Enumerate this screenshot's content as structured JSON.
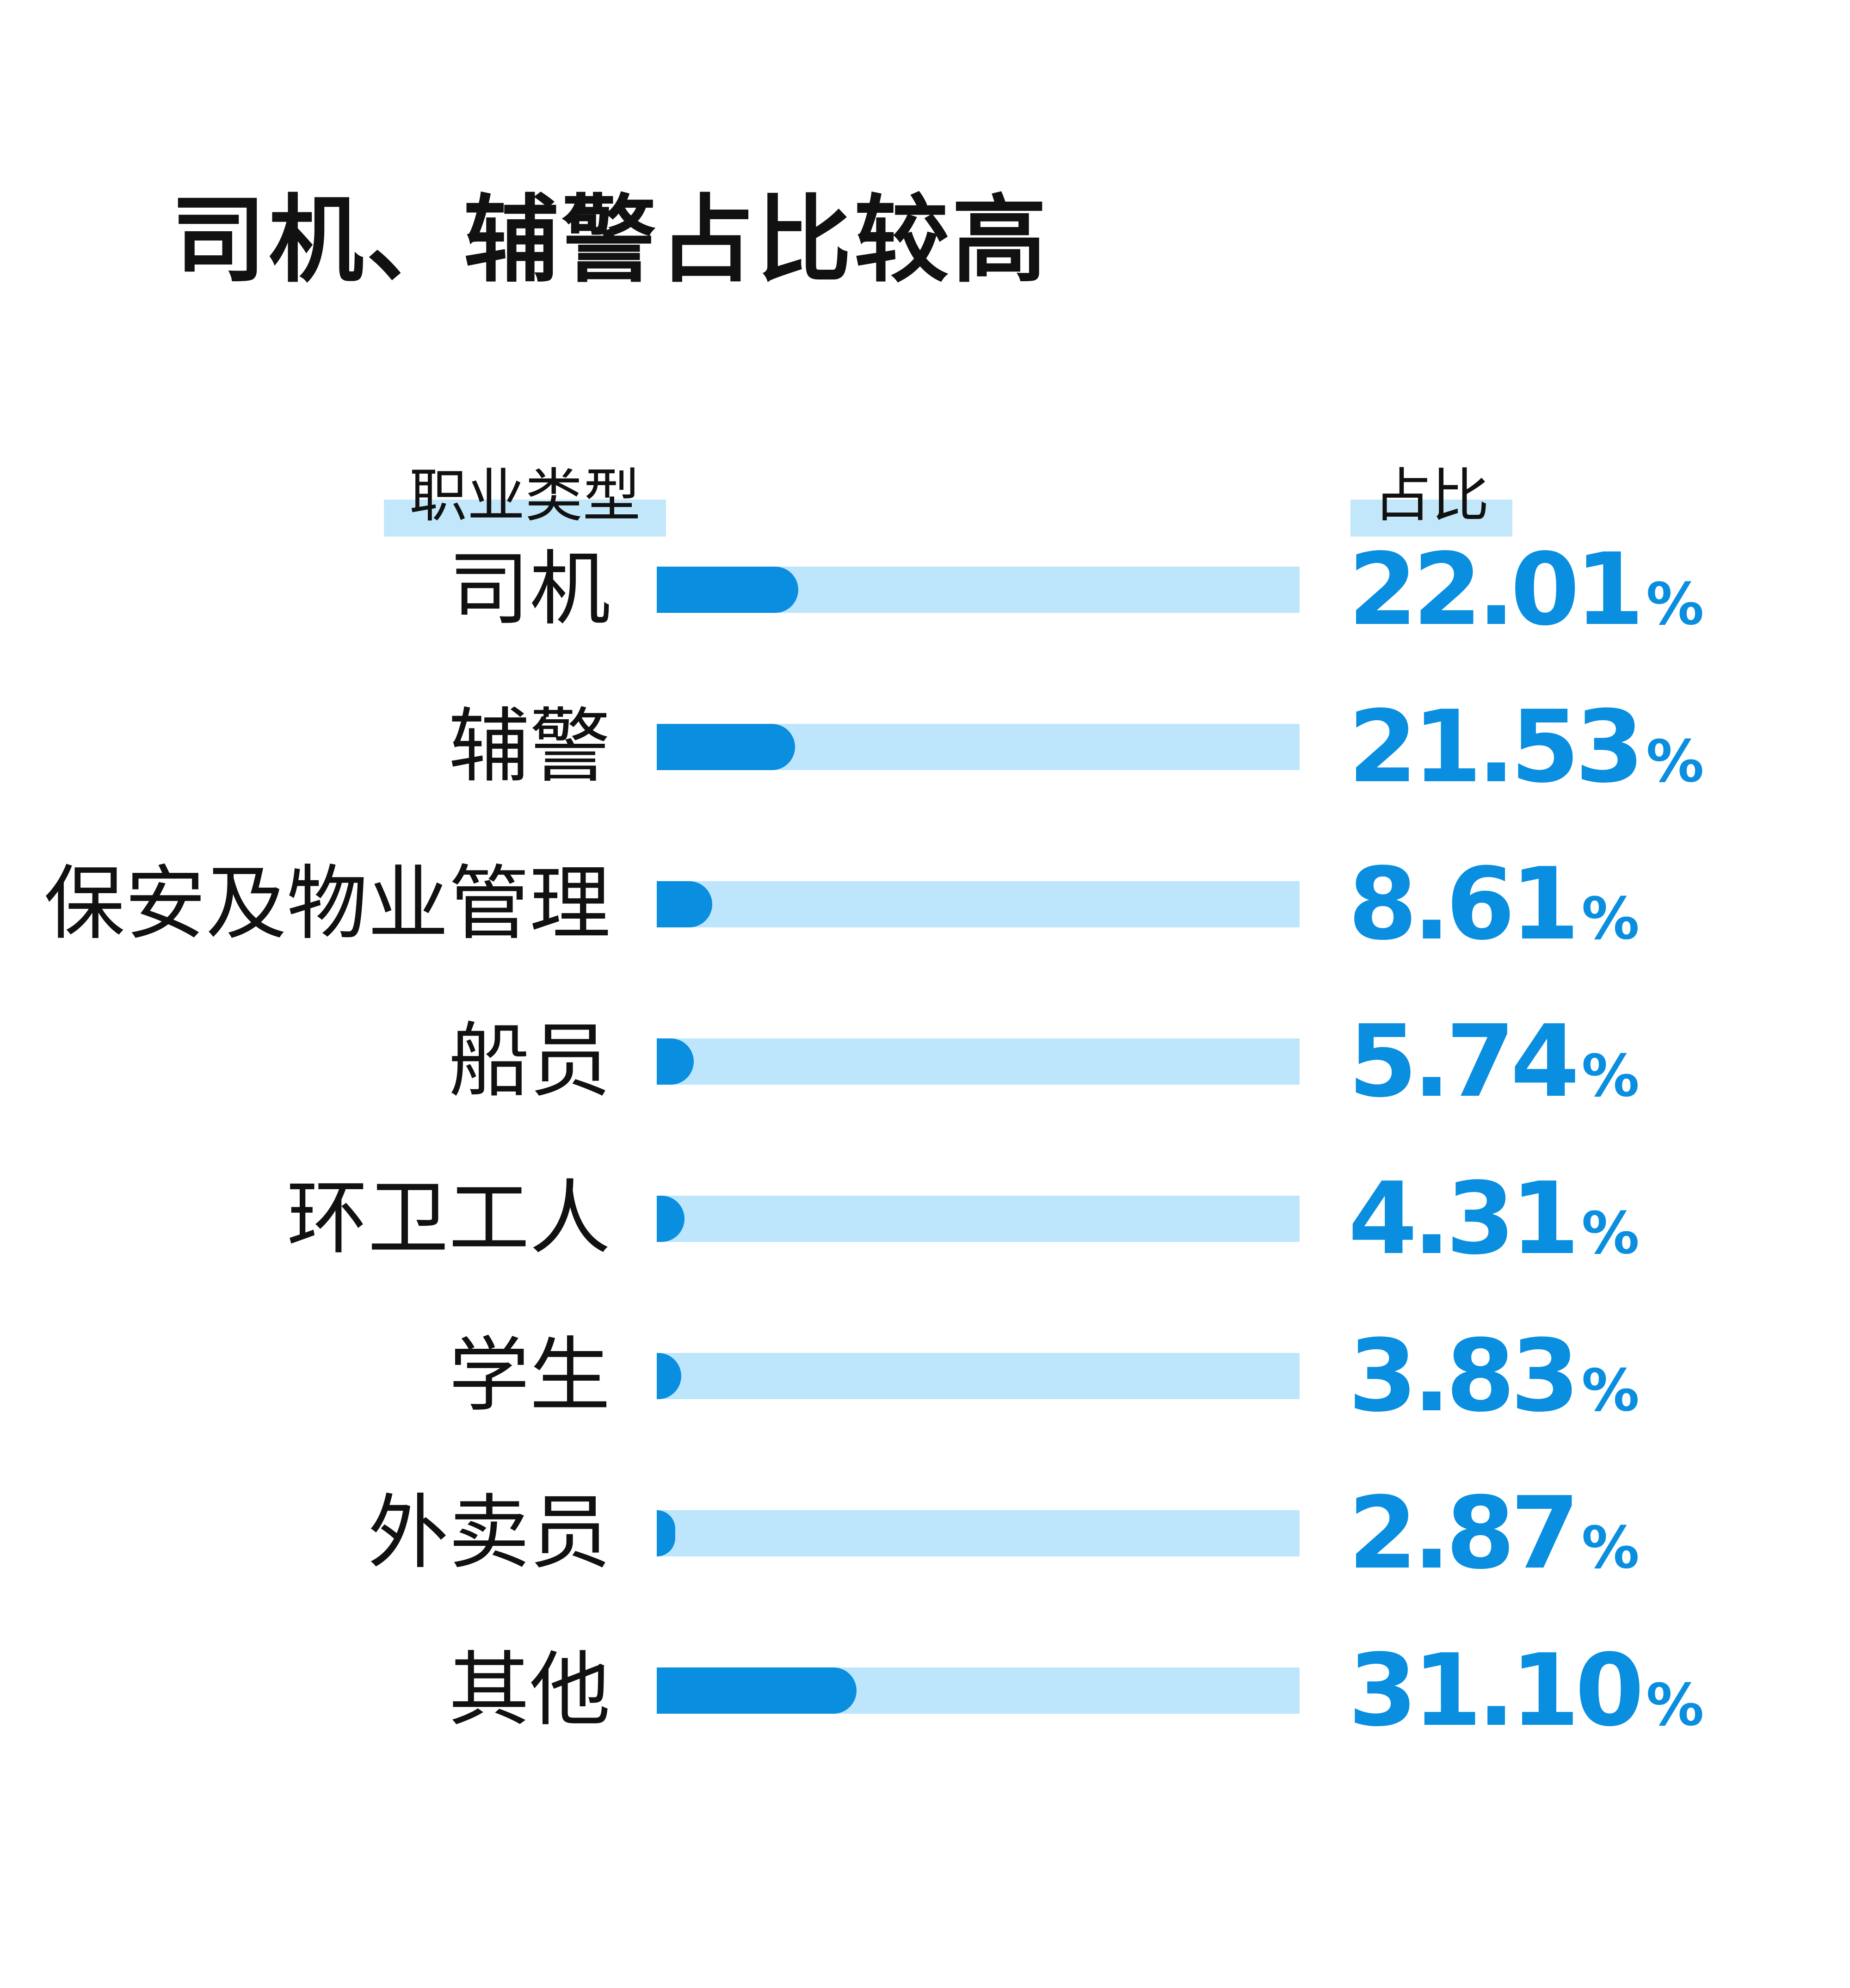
{
  "chart_data": {
    "type": "bar",
    "title": "司机、辅警占比较高",
    "header_category": "职业类型",
    "header_value": "占比",
    "unit": "%",
    "categories": [
      "司机",
      "辅警",
      "保安及物业管理",
      "船员",
      "环卫工人",
      "学生",
      "外卖员",
      "其他"
    ],
    "values": [
      22.01,
      21.53,
      8.61,
      5.74,
      4.31,
      3.83,
      2.87,
      31.1
    ],
    "value_labels": [
      "22.01",
      "21.53",
      "8.61",
      "5.74",
      "4.31",
      "3.83",
      "2.87",
      "31.10"
    ],
    "xlim": [
      0,
      100
    ],
    "colors": {
      "fill": "#0a8ee0",
      "track": "#bde6fc",
      "value_text": "#0a8ee0",
      "header_highlight": "#c2e7fb"
    }
  }
}
